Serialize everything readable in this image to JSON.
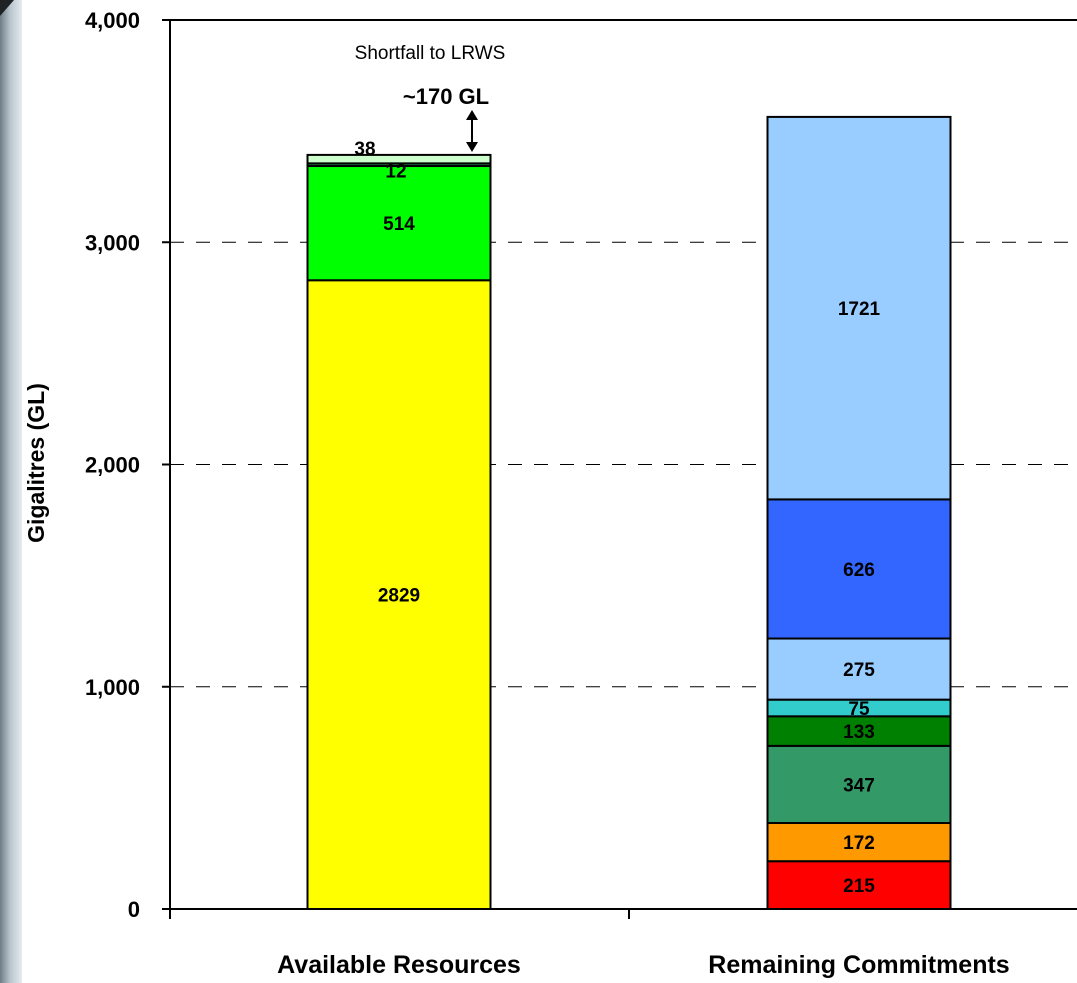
{
  "chart_data": {
    "type": "bar",
    "stacked": true,
    "ylabel": "Gigalitres (GL)",
    "ylim": [
      0,
      4000
    ],
    "yticks": [
      0,
      1000,
      2000,
      3000,
      4000
    ],
    "ytick_labels": [
      "0",
      "1,000",
      "2,000",
      "3,000",
      "4,000"
    ],
    "grid": "horizontal dashed",
    "categories": [
      "Available Resources",
      "Remaining Commitments"
    ],
    "bars": [
      {
        "category": "Available Resources",
        "segments": [
          {
            "value": 2829,
            "label": "2829",
            "color": "#ffff00"
          },
          {
            "value": 514,
            "label": "514",
            "color": "#00ff00"
          },
          {
            "value": 12,
            "label": "12",
            "color": "#2e8b57"
          },
          {
            "value": 38,
            "label": "38",
            "color": "#ccffcc"
          }
        ]
      },
      {
        "category": "Remaining Commitments",
        "segments": [
          {
            "value": 215,
            "label": "215",
            "color": "#ff0000"
          },
          {
            "value": 172,
            "label": "172",
            "color": "#ff9900"
          },
          {
            "value": 347,
            "label": "347",
            "color": "#339966"
          },
          {
            "value": 133,
            "label": "133",
            "color": "#008000"
          },
          {
            "value": 75,
            "label": "75",
            "color": "#33cccc"
          },
          {
            "value": 275,
            "label": "275",
            "color": "#99ccff"
          },
          {
            "value": 626,
            "label": "626",
            "color": "#3366ff"
          },
          {
            "value": 1721,
            "label": "1721",
            "color": "#99ccff"
          }
        ]
      }
    ],
    "annotations": {
      "shortfall_label": "Shortfall to LRWS",
      "shortfall_value": "~170 GL"
    }
  }
}
